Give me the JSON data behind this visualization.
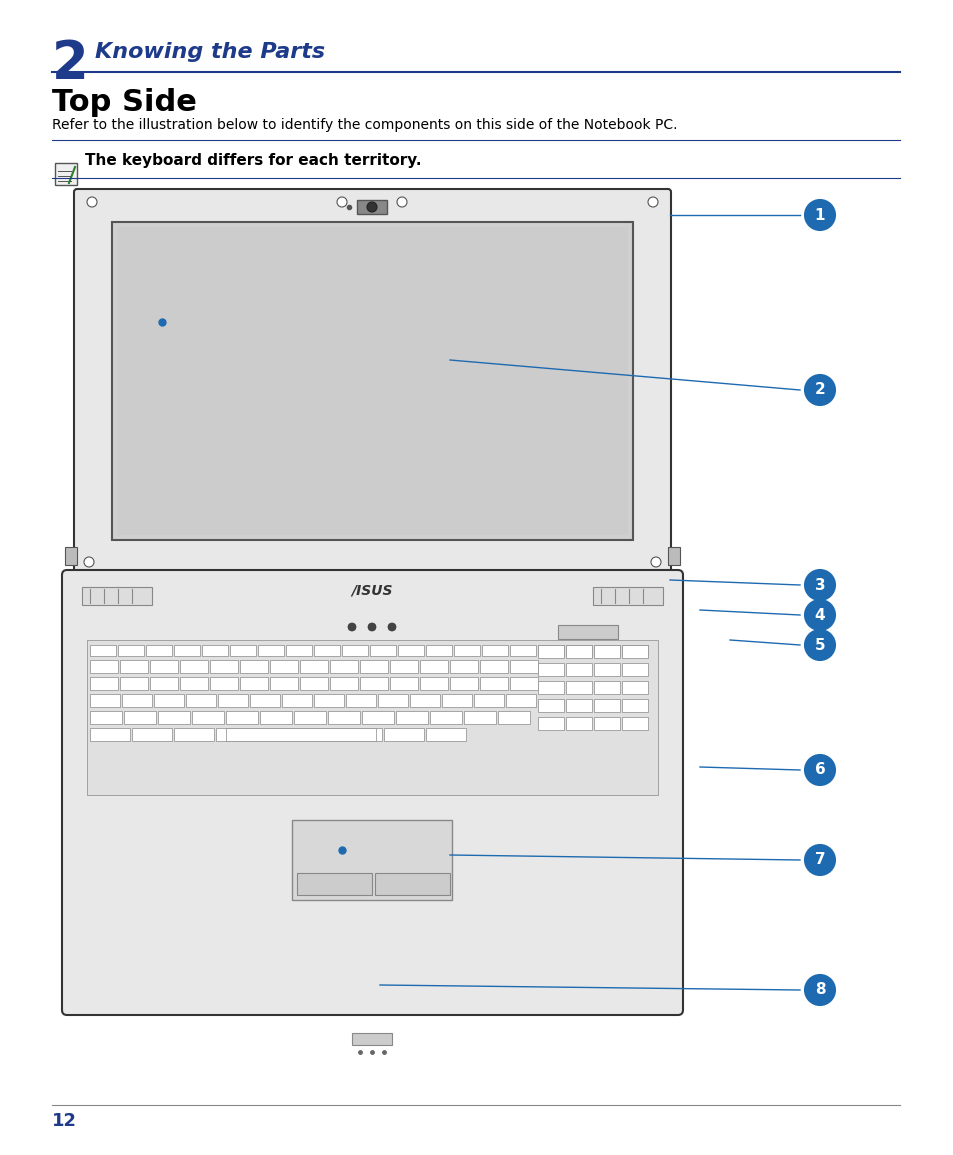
{
  "page_bg": "#ffffff",
  "chapter_num": "2",
  "chapter_title": "Knowing the Parts",
  "section_title": "Top Side",
  "body_text": "Refer to the illustration below to identify the components on this side of the Notebook PC.",
  "note_text": "The keyboard differs for each territory.",
  "page_num": "12",
  "header_line_color": "#1e3a8a",
  "note_line_color": "#1e3a8a",
  "chapter_num_color": "#1e3a8a",
  "chapter_title_color": "#1e3a8a",
  "section_title_color": "#000000",
  "body_text_color": "#000000",
  "note_text_color": "#000000",
  "page_num_color": "#1e3a8a",
  "callout_color": "#1e6ab0",
  "callout_text_color": "#ffffff",
  "laptop_outline_color": "#333333",
  "laptop_fill_color": "#e8e8e8",
  "screen_fill": "#d0d0d0",
  "screen_inner_fill": "#c8c8c8",
  "labels": [
    "1",
    "2",
    "3",
    "4",
    "5",
    "6",
    "7",
    "8"
  ]
}
